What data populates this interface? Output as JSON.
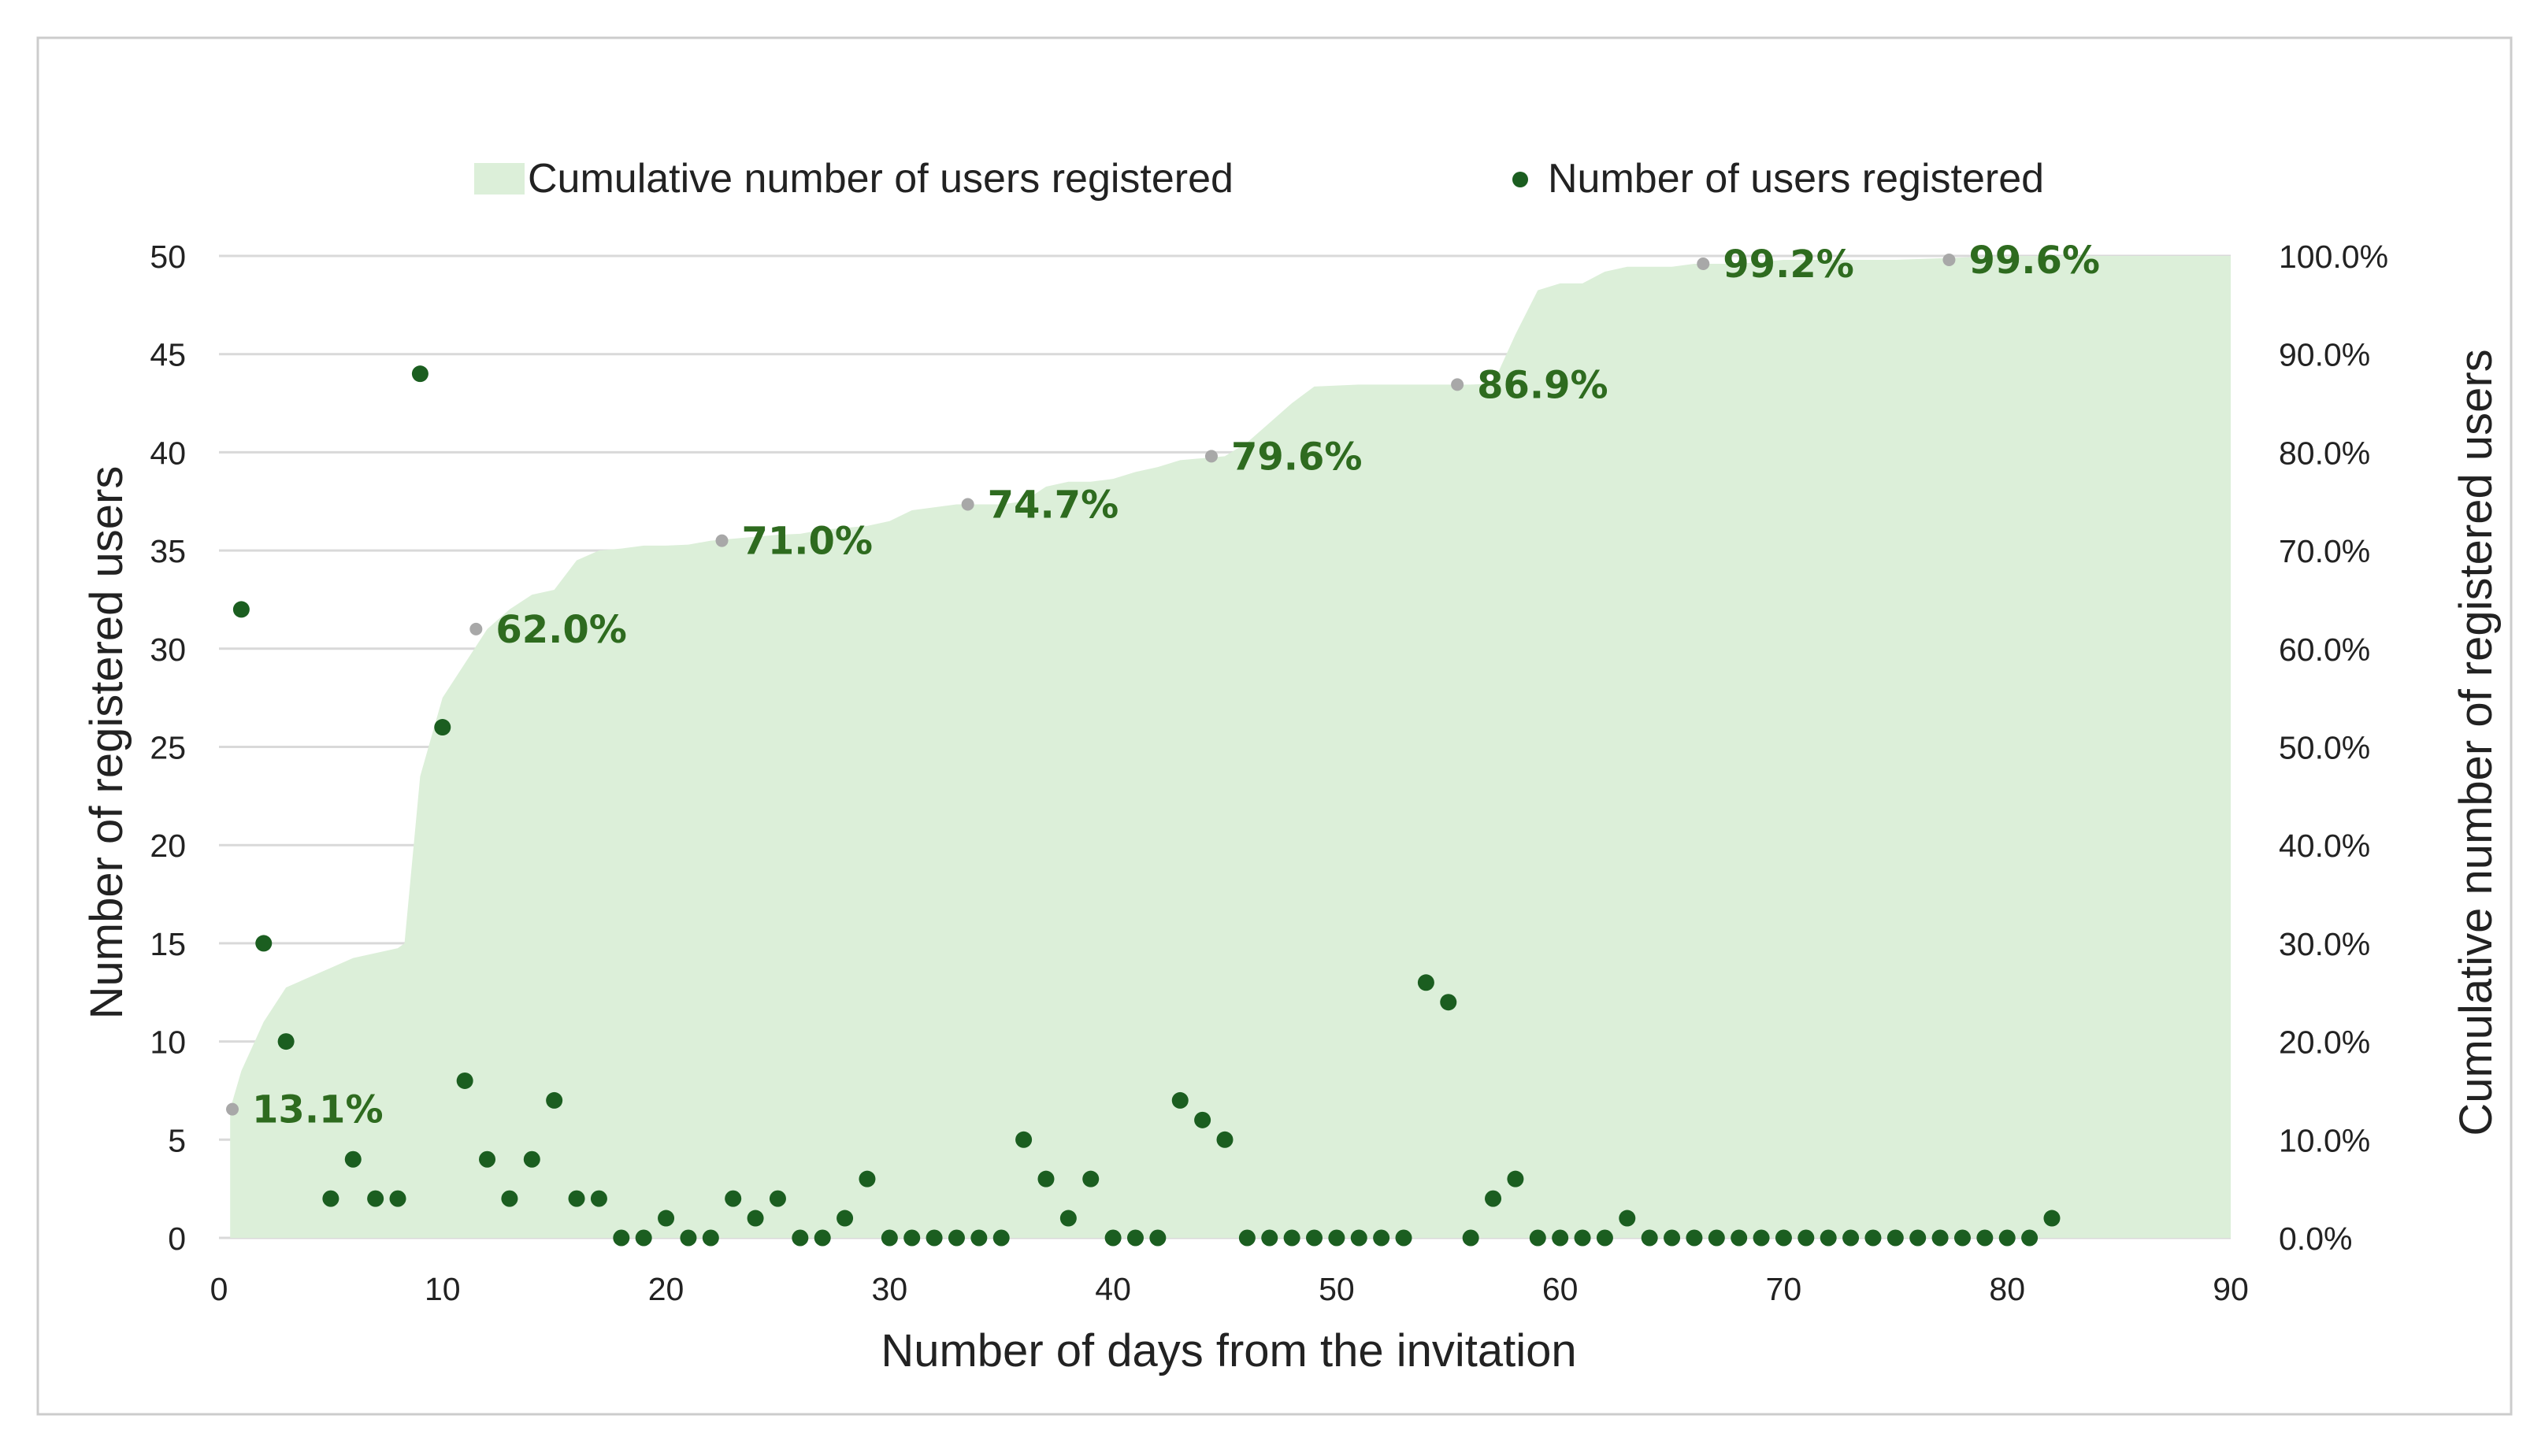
{
  "chart_data": {
    "type": "scatter",
    "title": "",
    "xlabel": "Number of days from the invitation",
    "ylabel": "Number of registered users",
    "y2label": "Cumulative number of registered users",
    "xlim": [
      0,
      90
    ],
    "ylim": [
      0,
      50
    ],
    "y2lim": [
      0,
      100
    ],
    "x_ticks": [
      "0",
      "10",
      "20",
      "30",
      "40",
      "50",
      "60",
      "70",
      "80",
      "90"
    ],
    "y_ticks": [
      "0",
      "5",
      "10",
      "15",
      "20",
      "25",
      "30",
      "35",
      "40",
      "45",
      "50"
    ],
    "y2_ticks": [
      "0.0%",
      "10.0%",
      "20.0%",
      "30.0%",
      "40.0%",
      "50.0%",
      "60.0%",
      "70.0%",
      "80.0%",
      "90.0%",
      "100.0%"
    ],
    "grid": true,
    "legend_position": "top",
    "legend": [
      "Cumulative number of users registered",
      "Number of users registered"
    ],
    "colors": {
      "area": "#dcefd9",
      "points": "#1b5e20",
      "annotation_text": "#2e6b1f",
      "marker": "#a8a8a8",
      "grid": "#d9d9d9",
      "frame": "#cccccc"
    },
    "series": [
      {
        "name": "Number of users registered",
        "type": "scatter",
        "axis": "left",
        "x": [
          1,
          2,
          3,
          5,
          6,
          7,
          8,
          9,
          10,
          11,
          12,
          13,
          14,
          15,
          16,
          17,
          18,
          19,
          20,
          21,
          22,
          23,
          24,
          25,
          26,
          27,
          28,
          29,
          30,
          31,
          32,
          33,
          34,
          35,
          36,
          37,
          38,
          39,
          40,
          41,
          42,
          43,
          44,
          45,
          46,
          47,
          48,
          49,
          50,
          51,
          52,
          53,
          54,
          55,
          56,
          57,
          58,
          59,
          60,
          61,
          62,
          63,
          64,
          65,
          66,
          67,
          68,
          69,
          70,
          71,
          72,
          73,
          74,
          75,
          76,
          77,
          78,
          79,
          80,
          81,
          82
        ],
        "y": [
          32,
          15,
          10,
          2,
          4,
          2,
          2,
          44,
          26,
          8,
          4,
          2,
          4,
          7,
          2,
          2,
          0,
          0,
          1,
          0,
          0,
          2,
          1,
          2,
          0,
          0,
          1,
          3,
          0,
          0,
          0,
          0,
          0,
          0,
          5,
          3,
          1,
          3,
          0,
          0,
          0,
          7,
          6,
          5,
          0,
          0,
          0,
          0,
          0,
          0,
          0,
          0,
          13,
          12,
          0,
          2,
          3,
          0,
          0,
          0,
          0,
          1,
          0,
          0,
          0,
          0,
          0,
          0,
          0,
          0,
          0,
          0,
          0,
          0,
          0,
          0,
          0,
          0,
          0,
          0,
          1
        ]
      },
      {
        "name": "Cumulative number of users registered",
        "type": "area",
        "axis": "right",
        "unit": "%",
        "x": [
          0.5,
          1,
          2,
          3,
          4,
          5,
          6,
          7,
          8,
          8.3,
          9,
          10,
          11,
          12,
          13,
          14,
          15,
          16,
          17,
          18,
          19,
          20,
          21,
          22,
          23,
          24,
          25,
          26,
          27,
          28,
          29,
          30,
          31,
          32,
          33,
          34,
          35,
          36,
          37,
          38,
          39,
          40,
          41,
          42,
          43,
          44,
          45,
          46,
          47,
          48,
          49,
          50,
          51,
          52,
          53,
          54,
          55,
          56,
          57,
          58,
          59,
          60,
          61,
          62,
          63,
          64,
          65,
          66,
          67,
          68,
          69,
          70,
          75,
          80,
          85,
          90
        ],
        "y": [
          13.1,
          17,
          22,
          25.5,
          26.5,
          27.5,
          28.5,
          29,
          29.5,
          30,
          47,
          55,
          58.5,
          62,
          64,
          65.5,
          66,
          69,
          70,
          70.2,
          70.5,
          70.5,
          70.6,
          71,
          71.2,
          71.4,
          71.6,
          71.7,
          72.1,
          72.3,
          72.5,
          73,
          74.1,
          74.4,
          74.7,
          74.7,
          74.7,
          75,
          76.5,
          77,
          77,
          77.3,
          78,
          78.5,
          79.2,
          79.4,
          79.6,
          81,
          83,
          85,
          86.7,
          86.8,
          86.9,
          86.9,
          86.9,
          86.9,
          86.9,
          86.9,
          87,
          92,
          96.5,
          97.2,
          97.2,
          98.4,
          98.9,
          98.9,
          98.9,
          99.2,
          99.2,
          99.2,
          99.4,
          99.6,
          99.6,
          100,
          100,
          100
        ]
      }
    ],
    "annotations": [
      {
        "x": 0.6,
        "y2": 13.1,
        "label": "13.1%"
      },
      {
        "x": 11.5,
        "y2": 62.0,
        "label": "62.0%"
      },
      {
        "x": 22.5,
        "y2": 71.0,
        "label": "71.0%"
      },
      {
        "x": 33.5,
        "y2": 74.7,
        "label": "74.7%"
      },
      {
        "x": 44.4,
        "y2": 79.6,
        "label": "79.6%"
      },
      {
        "x": 55.4,
        "y2": 86.9,
        "label": "86.9%"
      },
      {
        "x": 66.4,
        "y2": 99.2,
        "label": "99.2%"
      },
      {
        "x": 77.4,
        "y2": 99.6,
        "label": "99.6%"
      }
    ]
  }
}
